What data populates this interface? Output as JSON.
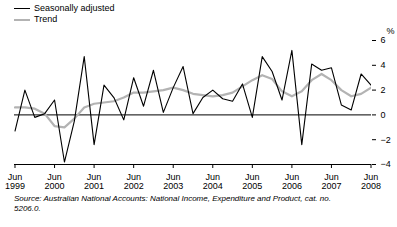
{
  "chart_data": {
    "type": "line",
    "y_label": "%",
    "caption": "Source: Australian National Accounts: National Income, Expenditure and Product, cat. no. 5206.0.",
    "categories": [
      "Jun 1999",
      null,
      null,
      null,
      "Jun 2000",
      null,
      null,
      null,
      "Jun 2001",
      null,
      null,
      null,
      "Jun 2002",
      null,
      null,
      null,
      "Jun 2003",
      null,
      null,
      null,
      "Jun 2004",
      null,
      null,
      null,
      "Jun 2005",
      null,
      null,
      null,
      "Jun 2006",
      null,
      null,
      null,
      "Jun 2007",
      null,
      null,
      null,
      "Jun 2008"
    ],
    "series": [
      {
        "name": "Seasonally adjusted",
        "color": "#000000",
        "values": [
          -1.3,
          2.0,
          -0.2,
          0.1,
          1.2,
          -3.8,
          -0.5,
          4.7,
          -2.4,
          2.4,
          1.4,
          -0.4,
          3.0,
          0.7,
          3.6,
          0.2,
          2.2,
          3.9,
          0.1,
          1.4,
          2.0,
          1.3,
          1.1,
          2.5,
          -0.2,
          4.7,
          3.5,
          1.2,
          5.2,
          -2.4,
          4.1,
          3.6,
          3.8,
          0.8,
          0.4,
          3.3,
          2.4
        ]
      },
      {
        "name": "Trend",
        "color": "#b3b3b3",
        "values": [
          0.6,
          0.6,
          0.5,
          0.1,
          -0.9,
          -1.0,
          -0.3,
          0.6,
          0.9,
          1.0,
          1.1,
          1.4,
          1.8,
          1.8,
          1.9,
          2.0,
          2.2,
          2.0,
          1.7,
          1.6,
          1.5,
          1.6,
          1.8,
          2.3,
          2.8,
          3.2,
          2.9,
          1.9,
          1.5,
          1.9,
          2.8,
          3.3,
          2.8,
          2.0,
          1.5,
          1.7,
          2.2
        ]
      }
    ],
    "ylim": [
      -4,
      6
    ],
    "yticks": [
      -4,
      -2,
      0,
      2,
      4,
      6
    ],
    "grid": false,
    "legend": "top-left"
  }
}
